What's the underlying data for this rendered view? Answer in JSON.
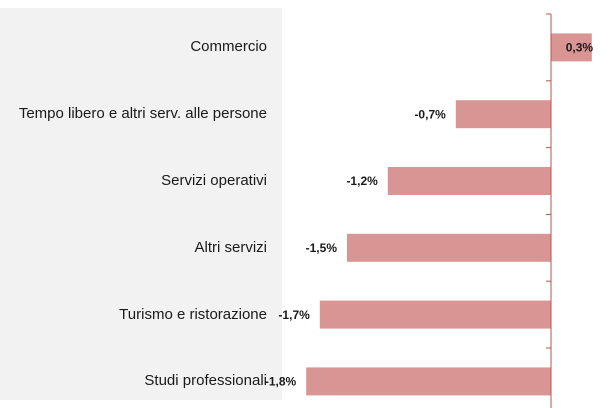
{
  "chart_data": {
    "type": "bar",
    "orientation": "horizontal",
    "categories": [
      "Commercio",
      "Tempo libero e altri serv. alle persone",
      "Servizi operativi",
      "Altri servizi",
      "Turismo e ristorazione",
      "Studi professionali"
    ],
    "values": [
      0.3,
      -0.7,
      -1.2,
      -1.5,
      -1.7,
      -1.8
    ],
    "value_labels": [
      "0,3%",
      "-0,7%",
      "-1,2%",
      "-1,5%",
      "-1,7%",
      "-1,8%"
    ],
    "color": "#d99594",
    "xlim": [
      -2,
      0.5
    ]
  }
}
